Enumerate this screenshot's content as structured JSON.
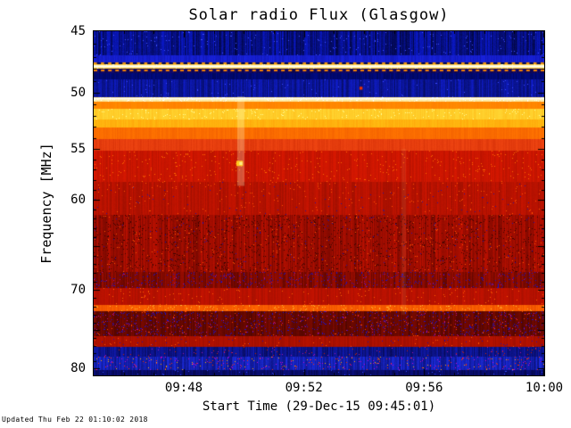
{
  "meta": {
    "updated": "Updated Thu Feb 22 01:10:02 2018"
  },
  "chart_data": {
    "type": "heatmap",
    "subtype": "solar-radio-spectrogram",
    "title": "Solar radio Flux (Glasgow)",
    "xlabel": "Start Time (29-Dec-15 09:45:01)",
    "ylabel": "Frequency [MHz]",
    "x_start_time": "09:45:01",
    "x_date": "29-Dec-15",
    "x_range_minutes": [
      0,
      15
    ],
    "x_ticks": [
      {
        "label": "09:48",
        "minute": 3
      },
      {
        "label": "09:52",
        "minute": 7
      },
      {
        "label": "09:56",
        "minute": 11
      },
      {
        "label": "10:00",
        "minute": 15
      }
    ],
    "y_scale": "log",
    "y_range": [
      45,
      81
    ],
    "y_axis_inverted": true,
    "y_ticks": [
      {
        "label": "45",
        "freq": 45
      },
      {
        "label": "50",
        "freq": 50
      },
      {
        "label": "55",
        "freq": 55
      },
      {
        "label": "60",
        "freq": 60
      },
      {
        "label": "70",
        "freq": 70
      },
      {
        "label": "80",
        "freq": 80
      }
    ],
    "y_unlabeled_ticks": [
      65,
      75
    ],
    "bands": [
      {
        "f0": 45.0,
        "f1": 46.9,
        "base": "#0a18c8",
        "alt": "#01042e",
        "stripe": 0.85,
        "speckles": [
          {
            "c": "#4050ff",
            "p": 0.015
          }
        ]
      },
      {
        "f0": 46.9,
        "f1": 47.45,
        "base": "#1822dd",
        "alt": "#0a0f90",
        "stripe": 0.45,
        "speckles": []
      },
      {
        "f0": 47.45,
        "f1": 47.62,
        "base": "#000c60",
        "alt": "#000430",
        "stripe": 0.5,
        "speckles": []
      },
      {
        "f0": 47.62,
        "f1": 47.95,
        "base": "#ffd24d",
        "alt": "#ff9100",
        "stripe": 0.3,
        "speckles": [
          {
            "c": "#ffffcc",
            "p": 0.05
          }
        ]
      },
      {
        "f0": 47.95,
        "f1": 48.32,
        "base": "#140a70",
        "alt": "#050228",
        "stripe": 0.5,
        "speckles": []
      },
      {
        "f0": 48.32,
        "f1": 48.85,
        "base": "#000a85",
        "alt": "#000336",
        "stripe": 0.5,
        "speckles": []
      },
      {
        "f0": 48.85,
        "f1": 50.35,
        "base": "#0f1cc8",
        "alt": "#030845",
        "stripe": 0.7,
        "speckles": [
          {
            "c": "#3a4aff",
            "p": 0.01
          }
        ]
      },
      {
        "f0": 50.35,
        "f1": 50.72,
        "base": "#ffeeaa",
        "alt": "#ffcc55",
        "stripe": 0.25,
        "speckles": [
          {
            "c": "#ffffff",
            "p": 0.08
          }
        ]
      },
      {
        "f0": 50.72,
        "f1": 51.35,
        "base": "#ff8c00",
        "alt": "#ff6400",
        "stripe": 0.3,
        "speckles": []
      },
      {
        "f0": 51.35,
        "f1": 52.35,
        "base": "#ffd633",
        "alt": "#ffa500",
        "stripe": 0.35,
        "speckles": [
          {
            "c": "#ffff99",
            "p": 0.03
          }
        ]
      },
      {
        "f0": 52.35,
        "f1": 53.05,
        "base": "#ffbb11",
        "alt": "#ff8800",
        "stripe": 0.35,
        "speckles": []
      },
      {
        "f0": 53.05,
        "f1": 54.1,
        "base": "#ff7300",
        "alt": "#e85000",
        "stripe": 0.4,
        "speckles": []
      },
      {
        "f0": 54.1,
        "f1": 55.2,
        "base": "#ee4411",
        "alt": "#c42200",
        "stripe": 0.4,
        "speckles": []
      },
      {
        "f0": 55.2,
        "f1": 58.2,
        "base": "#d81800",
        "alt": "#a00e00",
        "stripe": 0.5,
        "speckles": [
          {
            "c": "#ff6a00",
            "p": 0.02
          }
        ]
      },
      {
        "f0": 58.2,
        "f1": 61.6,
        "base": "#c81400",
        "alt": "#8a0c00",
        "stripe": 0.6,
        "speckles": [
          {
            "c": "#ff5500",
            "p": 0.012
          },
          {
            "c": "#27129f",
            "p": 0.004
          }
        ]
      },
      {
        "f0": 61.6,
        "f1": 67.9,
        "base": "#bb1000",
        "alt": "#6d0700",
        "stripe": 0.8,
        "speckles": [
          {
            "c": "#3a0400",
            "p": 0.05
          },
          {
            "c": "#ff5500",
            "p": 0.01
          },
          {
            "c": "#1f10aa",
            "p": 0.006
          }
        ]
      },
      {
        "f0": 67.9,
        "f1": 69.8,
        "base": "#a00d00",
        "alt": "#4d0400",
        "stripe": 0.75,
        "speckles": [
          {
            "c": "#1a10cc",
            "p": 0.045
          },
          {
            "c": "#aa1180",
            "p": 0.012
          }
        ]
      },
      {
        "f0": 69.8,
        "f1": 71.8,
        "base": "#c41200",
        "alt": "#8f0e00",
        "stripe": 0.5,
        "speckles": [
          {
            "c": "#ff6000",
            "p": 0.015
          }
        ]
      },
      {
        "f0": 71.8,
        "f1": 72.6,
        "base": "#ff6600",
        "alt": "#d63200",
        "stripe": 0.4,
        "speckles": [
          {
            "c": "#ffbb33",
            "p": 0.05
          }
        ]
      },
      {
        "f0": 72.6,
        "f1": 75.7,
        "base": "#7c0a00",
        "alt": "#3c0300",
        "stripe": 0.7,
        "speckles": [
          {
            "c": "#1b12cc",
            "p": 0.05
          },
          {
            "c": "#c01188",
            "p": 0.015
          },
          {
            "c": "#ff4400",
            "p": 0.012
          }
        ]
      },
      {
        "f0": 75.7,
        "f1": 77.2,
        "base": "#b81200",
        "alt": "#850b00",
        "stripe": 0.5,
        "speckles": [
          {
            "c": "#ff5500",
            "p": 0.01
          },
          {
            "c": "#220daa",
            "p": 0.008
          }
        ]
      },
      {
        "f0": 77.2,
        "f1": 78.4,
        "base": "#101ab0",
        "alt": "#04063a",
        "stripe": 0.7,
        "speckles": [
          {
            "c": "#cc2200",
            "p": 0.01
          },
          {
            "c": "#aa11aa",
            "p": 0.01
          }
        ]
      },
      {
        "f0": 78.4,
        "f1": 80.3,
        "base": "#1c2ce0",
        "alt": "#060b60",
        "stripe": 0.75,
        "speckles": [
          {
            "c": "#ff3300",
            "p": 0.02
          },
          {
            "c": "#cc00cc",
            "p": 0.02
          },
          {
            "c": "#ffaa00",
            "p": 0.008
          }
        ]
      },
      {
        "f0": 80.3,
        "f1": 81.01,
        "base": "#0a0f80",
        "alt": "#02032a",
        "stripe": 0.6,
        "speckles": [
          {
            "c": "#334aff",
            "p": 0.01
          }
        ]
      }
    ],
    "features": [
      {
        "type": "vstreak",
        "t0": 4.78,
        "t1": 5.02,
        "f0": 50.3,
        "f1": 58.6,
        "color": "#ffffcc",
        "alpha": 0.28
      },
      {
        "type": "vstreak",
        "t0": 10.25,
        "t1": 10.4,
        "f0": 55.0,
        "f1": 73.0,
        "color": "#ffcc88",
        "alpha": 0.1
      },
      {
        "type": "dash_row",
        "f": 47.53,
        "h_mhz": 0.14,
        "period_min": 0.24,
        "duty": 0.45,
        "color": "#ff9900"
      },
      {
        "type": "hline",
        "f": 47.78,
        "h_mhz": 0.22,
        "color": "#fff6c0"
      },
      {
        "type": "hline",
        "f": 47.78,
        "h_mhz": 0.08,
        "color": "#ffffff"
      },
      {
        "type": "dash_row",
        "f": 48.12,
        "h_mhz": 0.14,
        "period_min": 0.24,
        "duty": 0.5,
        "color": "#ff8800"
      },
      {
        "type": "hline",
        "f": 50.5,
        "h_mhz": 0.1,
        "color": "#ffffff"
      },
      {
        "type": "blob",
        "t": 4.86,
        "f": 56.4,
        "w_min": 0.22,
        "h_mhz": 0.5,
        "color": "#ffc820"
      },
      {
        "type": "blob",
        "t": 4.9,
        "f": 56.4,
        "w_min": 0.1,
        "h_mhz": 0.3,
        "color": "#ffee88"
      },
      {
        "type": "blob",
        "t": 8.9,
        "f": 49.6,
        "w_min": 0.1,
        "h_mhz": 0.25,
        "color": "#ee3300"
      }
    ],
    "axis_color": "#000000",
    "background_color": "#ffffff"
  }
}
